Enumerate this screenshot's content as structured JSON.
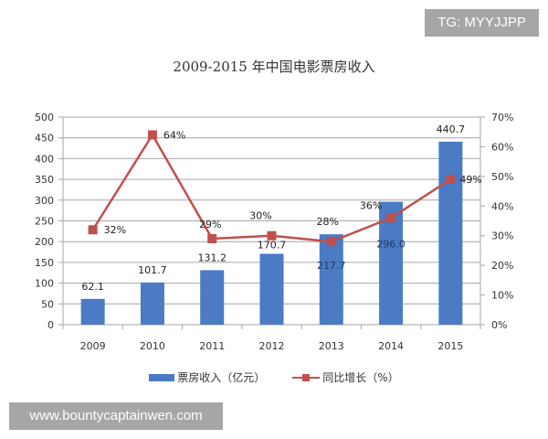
{
  "watermarks": {
    "top_right": "TG: MYYJJPP",
    "bottom_left": "www.bountycaptainwen.com"
  },
  "colors": {
    "bar": "#4a7bc4",
    "line": "#c0504d",
    "grid": "#a6a6a6",
    "watermark_bg": "#a6a6a6"
  },
  "chart_data": {
    "type": "bar",
    "title": "2009-2015 年中国电影票房收入",
    "categories": [
      "2009",
      "2010",
      "2011",
      "2012",
      "2013",
      "2014",
      "2015"
    ],
    "series": [
      {
        "name": "票房收入（亿元）",
        "type": "bar",
        "axis": "left",
        "values": [
          62.1,
          101.7,
          131.2,
          170.7,
          217.7,
          296.0,
          440.7
        ],
        "labels": [
          "62.1",
          "101.7",
          "131.2",
          "170.7",
          "217.7",
          "296.0",
          "440.7"
        ]
      },
      {
        "name": "同比增长（%）",
        "type": "line",
        "axis": "right",
        "values": [
          32,
          64,
          29,
          30,
          28,
          36,
          49
        ],
        "labels": [
          "32%",
          "64%",
          "29%",
          "30%",
          "28%",
          "36%",
          "49%"
        ]
      }
    ],
    "left_axis": {
      "ylim": [
        0,
        500
      ],
      "ticks": [
        "0",
        "50",
        "100",
        "150",
        "200",
        "250",
        "300",
        "350",
        "400",
        "450",
        "500"
      ]
    },
    "right_axis": {
      "ylim": [
        0,
        70
      ],
      "ticks": [
        "0%",
        "10%",
        "20%",
        "30%",
        "40%",
        "50%",
        "60%",
        "70%"
      ]
    },
    "xlabel": "",
    "ylabel": "",
    "grid": true,
    "legend_position": "bottom",
    "legend": [
      "票房收入（亿元）",
      "同比增长（%）"
    ]
  }
}
